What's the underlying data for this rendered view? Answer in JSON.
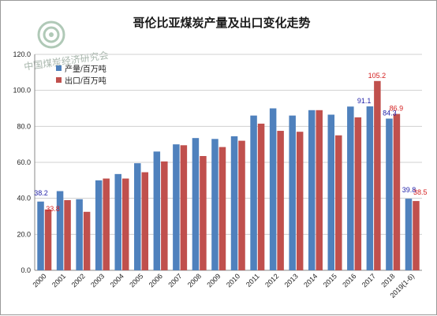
{
  "chart_data": {
    "type": "bar",
    "title": "哥伦比亚煤炭产量及出口变化走势",
    "watermark": "中国煤炭经济研究会",
    "categories": [
      "2000",
      "2001",
      "2002",
      "2003",
      "2004",
      "2005",
      "2006",
      "2007",
      "2008",
      "2009",
      "2010",
      "2011",
      "2012",
      "2013",
      "2014",
      "2015",
      "2016",
      "2017",
      "2018",
      "2019(1-6)"
    ],
    "series": [
      {
        "name": "产量/百万吨",
        "color": "#4f81bd",
        "label_color": "#1f1fa8",
        "values": [
          38.2,
          44.0,
          39.5,
          50.0,
          53.5,
          59.5,
          66.0,
          70.0,
          73.5,
          73.0,
          74.5,
          86.0,
          90.0,
          86.0,
          89.0,
          86.5,
          91.0,
          91.1,
          84.3,
          39.8
        ]
      },
      {
        "name": "出口/百万吨",
        "color": "#c0504d",
        "label_color": "#d42020",
        "values": [
          33.8,
          39.0,
          32.5,
          51.0,
          51.0,
          54.5,
          60.5,
          69.5,
          63.5,
          68.5,
          72.0,
          81.5,
          77.5,
          77.0,
          89.0,
          75.0,
          85.0,
          105.2,
          86.9,
          38.5
        ]
      }
    ],
    "data_labels": [
      {
        "series": 0,
        "index": 0,
        "text": "38.2"
      },
      {
        "series": 1,
        "index": 0,
        "text": "33.8"
      },
      {
        "series": 0,
        "index": 17,
        "text": "91.1"
      },
      {
        "series": 1,
        "index": 17,
        "text": "105.2"
      },
      {
        "series": 0,
        "index": 18,
        "text": "84.3"
      },
      {
        "series": 1,
        "index": 18,
        "text": "86.9"
      },
      {
        "series": 0,
        "index": 19,
        "text": "39.8"
      },
      {
        "series": 1,
        "index": 19,
        "text": "38.5"
      }
    ],
    "ylim": [
      0,
      120
    ],
    "yticks": [
      "0.0",
      "20.0",
      "40.0",
      "60.0",
      "80.0",
      "100.0",
      "120.0"
    ],
    "grid": true,
    "legend_position": "top-left",
    "xlabel": "",
    "ylabel": ""
  }
}
